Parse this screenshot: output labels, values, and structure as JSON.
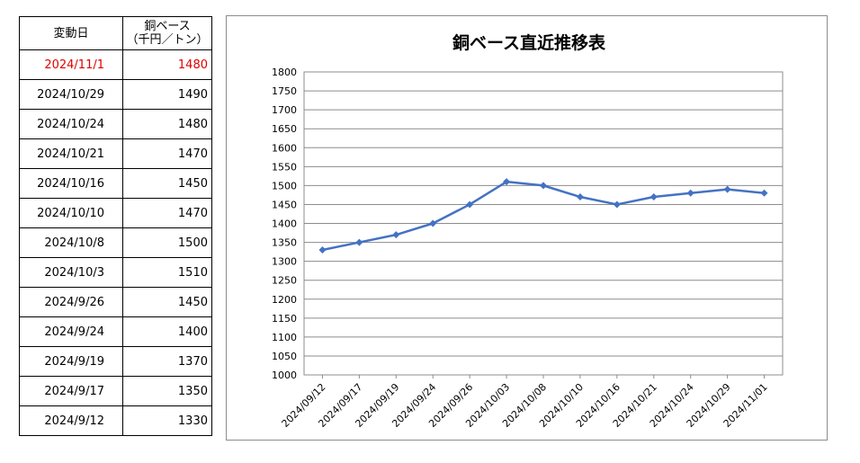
{
  "table": {
    "header_date": "変動日",
    "header_price_line1": "銅ベース",
    "header_price_line2": "（千円／トン）",
    "rows": [
      {
        "date": "2024/11/1",
        "price": "1480"
      },
      {
        "date": "2024/10/29",
        "price": "1490"
      },
      {
        "date": "2024/10/24",
        "price": "1480"
      },
      {
        "date": "2024/10/21",
        "price": "1470"
      },
      {
        "date": "2024/10/16",
        "price": "1450"
      },
      {
        "date": "2024/10/10",
        "price": "1470"
      },
      {
        "date": "2024/10/8",
        "price": "1500"
      },
      {
        "date": "2024/10/3",
        "price": "1510"
      },
      {
        "date": "2024/9/26",
        "price": "1450"
      },
      {
        "date": "2024/9/24",
        "price": "1400"
      },
      {
        "date": "2024/9/19",
        "price": "1370"
      },
      {
        "date": "2024/9/17",
        "price": "1350"
      },
      {
        "date": "2024/9/12",
        "price": "1330"
      }
    ],
    "latest_color": "#e00000"
  },
  "chart_data": {
    "type": "line",
    "title": "銅ベース直近推移表",
    "xlabel": "",
    "ylabel": "",
    "categories": [
      "2024/09/12",
      "2024/09/17",
      "2024/09/19",
      "2024/09/24",
      "2024/09/26",
      "2024/10/03",
      "2024/10/08",
      "2024/10/10",
      "2024/10/16",
      "2024/10/21",
      "2024/10/24",
      "2024/10/29",
      "2024/11/01"
    ],
    "series": [
      {
        "values": [
          1330,
          1350,
          1370,
          1400,
          1450,
          1510,
          1500,
          1470,
          1450,
          1470,
          1480,
          1490,
          1480
        ],
        "color": "#4472c4"
      }
    ],
    "ylim": [
      1000,
      1800
    ],
    "ytick_step": 50,
    "grid": true,
    "legend": "none"
  }
}
